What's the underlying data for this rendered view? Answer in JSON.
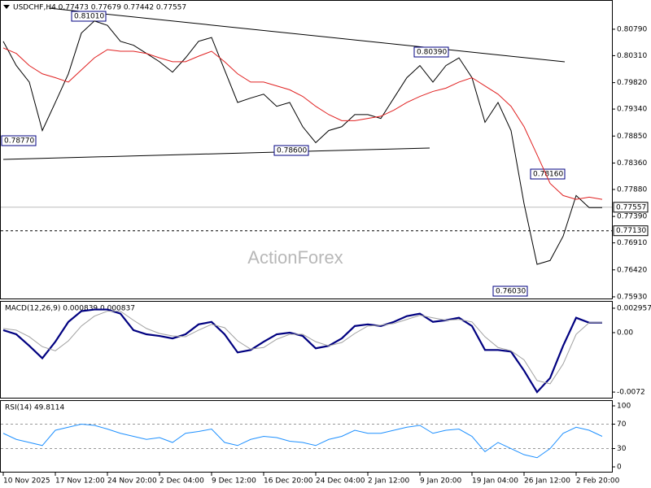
{
  "chart_data": [
    {
      "type": "line",
      "title": "USDCHF,H4  0.77473 0.77679 0.77442 0.77557",
      "watermark": "ActionForex",
      "categories": [
        "10 Nov 2025",
        null,
        null,
        null,
        "17 Nov 12:00",
        null,
        null,
        null,
        "24 Nov 20:00",
        null,
        null,
        null,
        "2 Dec 04:00",
        null,
        null,
        null,
        "9 Dec 12:00",
        null,
        null,
        null,
        "16 Dec 20:00",
        null,
        null,
        null,
        "24 Dec 04:00",
        null,
        null,
        null,
        "2 Jan 12:00",
        null,
        null,
        null,
        "9 Jan 20:00",
        null,
        null,
        null,
        "19 Jan 04:00",
        null,
        null,
        null,
        "26 Jan 12:00",
        null,
        null,
        null,
        "2 Feb 20:00",
        null,
        null
      ],
      "series": [
        {
          "name": "USDCHF",
          "color": "#000000",
          "values": [
            0.8057,
            0.8013,
            0.7983,
            0.7895,
            0.7946,
            0.7998,
            0.8072,
            0.8094,
            0.8086,
            0.8057,
            0.805,
            0.8035,
            0.802,
            0.8001,
            0.8027,
            0.8057,
            0.8064,
            0.8005,
            0.7946,
            0.7954,
            0.7961,
            0.7939,
            0.7946,
            0.7902,
            0.7873,
            0.7895,
            0.7902,
            0.7924,
            0.7924,
            0.7917,
            0.7954,
            0.7991,
            0.8013,
            0.7983,
            0.8013,
            0.8027,
            0.7991,
            0.791,
            0.7946,
            0.7895,
            0.7762,
            0.7652,
            0.7659,
            0.7703,
            0.7777,
            0.7755,
            0.7755
          ]
        },
        {
          "name": "MA",
          "color": "#e02020",
          "values": [
            0.8045,
            0.8035,
            0.8013,
            0.7998,
            0.7991,
            0.7983,
            0.8005,
            0.8027,
            0.8042,
            0.8039,
            0.8039,
            0.8035,
            0.8027,
            0.802,
            0.802,
            0.803,
            0.8039,
            0.802,
            0.7998,
            0.7983,
            0.7983,
            0.7976,
            0.7969,
            0.7957,
            0.7939,
            0.7924,
            0.7913,
            0.7913,
            0.7917,
            0.7921,
            0.7932,
            0.7946,
            0.7957,
            0.7966,
            0.7972,
            0.7983,
            0.7991,
            0.7976,
            0.7961,
            0.7939,
            0.7902,
            0.7851,
            0.7799,
            0.7777,
            0.777,
            0.7774,
            0.777
          ]
        }
      ],
      "ylim": [
        0.75885,
        0.81306
      ],
      "yticks": [
        {
          "value": 0.8079,
          "label": "0.80790"
        },
        {
          "value": 0.8031,
          "label": "0.80310"
        },
        {
          "value": 0.7982,
          "label": "0.79820"
        },
        {
          "value": 0.7934,
          "label": "0.79340"
        },
        {
          "value": 0.7885,
          "label": "0.78850"
        },
        {
          "value": 0.7836,
          "label": "0.78360"
        },
        {
          "value": 0.7788,
          "label": "0.77880"
        },
        {
          "value": 0.7739,
          "label": "0.77390"
        },
        {
          "value": 0.7691,
          "label": "0.76910"
        },
        {
          "value": 0.7642,
          "label": "0.76420"
        },
        {
          "value": 0.7593,
          "label": "0.75930"
        }
      ],
      "levels": [
        {
          "value": 0.77557,
          "label": "0.77557",
          "style": "solid"
        },
        {
          "value": 0.7713,
          "label": "0.77130",
          "style": "dashed"
        }
      ],
      "annotations": [
        "0.81010",
        "0.80390",
        "0.78770",
        "0.78600",
        "0.78160",
        "0.76030"
      ]
    },
    {
      "type": "line",
      "title": "MACD(12,26,9) 0.000839 0.000837",
      "series": [
        {
          "name": "MACD",
          "color": "#000080",
          "values": [
            0.0003,
            -0.0002,
            -0.0016,
            -0.0031,
            -0.0011,
            0.0013,
            0.0026,
            0.0028,
            0.0028,
            0.0023,
            0.0003,
            -0.0002,
            -0.0004,
            -0.0007,
            -0.0002,
            0.001,
            0.0013,
            -0.0002,
            -0.0024,
            -0.0021,
            -0.0011,
            -0.0002,
            0,
            -0.0004,
            -0.0019,
            -0.0016,
            -0.0007,
            0.0008,
            0.001,
            0.0008,
            0.0013,
            0.002,
            0.0023,
            0.0013,
            0.0015,
            0.0018,
            0.0008,
            -0.0021,
            -0.0021,
            -0.0023,
            -0.0046,
            -0.0072,
            -0.0055,
            -0.0016,
            0.0018,
            0.0012,
            0.0012
          ]
        },
        {
          "name": "Signal",
          "color": "#a0a0a0",
          "values": [
            0.0005,
            0.0003,
            -0.0005,
            -0.0017,
            -0.0022,
            -0.001,
            0.0008,
            0.002,
            0.0026,
            0.0026,
            0.0015,
            0.0005,
            -0.0001,
            -0.0004,
            -0.0005,
            0.0003,
            0.001,
            0.0006,
            -0.001,
            -0.002,
            -0.0018,
            -0.0008,
            -0.0002,
            -0.0002,
            -0.0011,
            -0.0016,
            -0.0012,
            -0.0001,
            0.0008,
            0.0009,
            0.0011,
            0.0016,
            0.0021,
            0.0018,
            0.0015,
            0.0016,
            0.0013,
            -0.0005,
            -0.0018,
            -0.0022,
            -0.0033,
            -0.0058,
            -0.0062,
            -0.0038,
            -0.0002,
            0.0012,
            0.0012
          ]
        }
      ],
      "ylim": [
        -0.00798,
        0.00374
      ],
      "yticks": [
        0.002957,
        {
          "value": 0,
          "label": "0.00"
        },
        -0.0072
      ]
    },
    {
      "type": "line",
      "title": "RSI(14) 49.8114",
      "series": [
        {
          "name": "RSI",
          "color": "#1e90ff",
          "values": [
            55,
            45,
            40,
            35,
            60,
            65,
            70,
            68,
            62,
            55,
            50,
            45,
            48,
            40,
            55,
            58,
            62,
            40,
            35,
            45,
            50,
            48,
            42,
            40,
            35,
            45,
            50,
            60,
            55,
            55,
            60,
            65,
            68,
            55,
            60,
            62,
            50,
            25,
            40,
            30,
            20,
            15,
            30,
            55,
            65,
            60,
            50
          ]
        }
      ],
      "ylim": [
        -9.3,
        108
      ],
      "yticks": [
        100,
        70,
        30,
        0
      ],
      "levels": [
        70,
        30
      ]
    }
  ]
}
